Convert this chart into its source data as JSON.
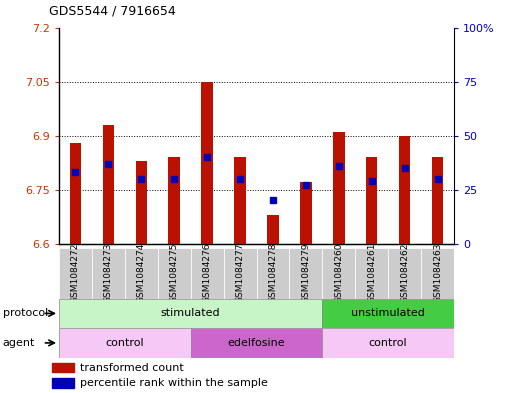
{
  "title": "GDS5544 / 7916654",
  "samples": [
    "GSM1084272",
    "GSM1084273",
    "GSM1084274",
    "GSM1084275",
    "GSM1084276",
    "GSM1084277",
    "GSM1084278",
    "GSM1084279",
    "GSM1084260",
    "GSM1084261",
    "GSM1084262",
    "GSM1084263"
  ],
  "red_values": [
    6.88,
    6.93,
    6.83,
    6.84,
    7.05,
    6.84,
    6.68,
    6.77,
    6.91,
    6.84,
    6.9,
    6.84
  ],
  "blue_values": [
    33,
    37,
    30,
    30,
    40,
    30,
    20,
    27,
    36,
    29,
    35,
    30
  ],
  "y_min": 6.6,
  "y_max": 7.2,
  "y_ticks": [
    6.6,
    6.75,
    6.9,
    7.05,
    7.2
  ],
  "y_right_ticks": [
    0,
    25,
    50,
    75,
    100
  ],
  "protocol_groups": [
    {
      "label": "stimulated",
      "start": 0,
      "end": 8,
      "color": "#c8f5c8"
    },
    {
      "label": "unstimulated",
      "start": 8,
      "end": 12,
      "color": "#44cc44"
    }
  ],
  "agent_groups": [
    {
      "label": "control",
      "start": 0,
      "end": 4,
      "color": "#f5c8f5"
    },
    {
      "label": "edelfosine",
      "start": 4,
      "end": 8,
      "color": "#cc66cc"
    },
    {
      "label": "control",
      "start": 8,
      "end": 12,
      "color": "#f5c8f5"
    }
  ],
  "bar_color": "#bb1100",
  "dot_color": "#0000bb",
  "background_color": "#ffffff",
  "plot_bg_color": "#ffffff",
  "legend_red_label": "transformed count",
  "legend_blue_label": "percentile rank within the sample",
  "left_label_color": "#cc3300",
  "right_label_color": "#0000cc",
  "sample_box_color": "#cccccc",
  "bar_width": 0.35
}
